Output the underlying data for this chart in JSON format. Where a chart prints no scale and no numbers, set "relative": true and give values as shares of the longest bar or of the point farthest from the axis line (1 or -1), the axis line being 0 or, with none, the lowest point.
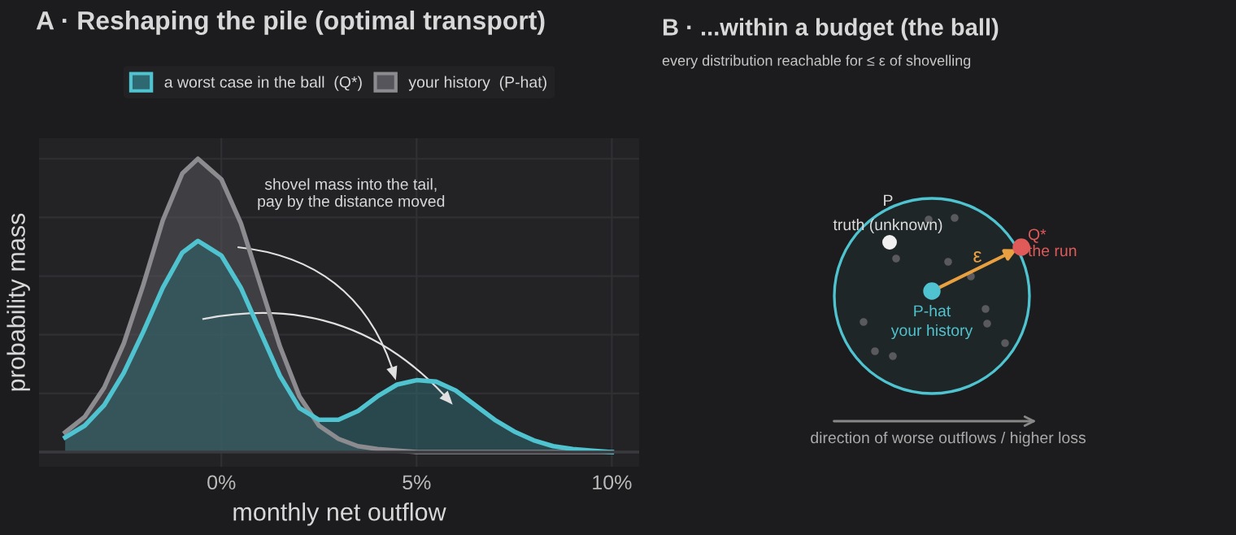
{
  "chart_data": [
    {
      "type": "area",
      "title": "A · Reshaping the pile (optimal transport)",
      "xlabel": "monthly net outflow",
      "ylabel": "probability mass",
      "relative": true,
      "grid": true,
      "legend": "top",
      "x": [
        -4,
        -3.5,
        -3,
        -2.5,
        -2,
        -1.5,
        -1,
        -0.6,
        0,
        0.5,
        1,
        1.5,
        2,
        2.5,
        3,
        3.5,
        4,
        4.5,
        5,
        5.5,
        6,
        6.5,
        7,
        7.5,
        8,
        8.5,
        9,
        9.5,
        10
      ],
      "xlim": [
        -4.67,
        10.7
      ],
      "xticks": [
        {
          "value": 0,
          "label": "0%"
        },
        {
          "value": 5,
          "label": "5%"
        },
        {
          "value": 10,
          "label": "10%"
        }
      ],
      "series": [
        {
          "name": "a worst case in the ball  (Q*)",
          "color": "#4fc3cf",
          "values": [
            0.05,
            0.09,
            0.16,
            0.27,
            0.41,
            0.56,
            0.68,
            0.72,
            0.67,
            0.56,
            0.41,
            0.26,
            0.15,
            0.11,
            0.11,
            0.14,
            0.19,
            0.23,
            0.245,
            0.24,
            0.21,
            0.16,
            0.11,
            0.07,
            0.04,
            0.02,
            0.01,
            0.005,
            0
          ]
        },
        {
          "name": "your history  (P-hat)",
          "color": "#8c8c90",
          "values": [
            0.067,
            0.12,
            0.22,
            0.37,
            0.57,
            0.79,
            0.95,
            1.0,
            0.93,
            0.78,
            0.57,
            0.36,
            0.19,
            0.09,
            0.045,
            0.02,
            0.01,
            0.005,
            0,
            0,
            0,
            0,
            0,
            0,
            0,
            0,
            0,
            0,
            0
          ]
        }
      ],
      "annotations": [
        "shovel mass into the tail,\npay by the distance moved"
      ]
    },
    {
      "type": "other",
      "title": "B · ...within a budget (the ball)",
      "subtitle": "every distribution reachable for ≤ ε of shovelling",
      "annotations": [
        "P",
        "truth (unknown)",
        "Q*",
        "the run",
        "ε",
        "P-hat",
        "your history",
        "direction of worse outflows / higher loss"
      ]
    }
  ]
}
